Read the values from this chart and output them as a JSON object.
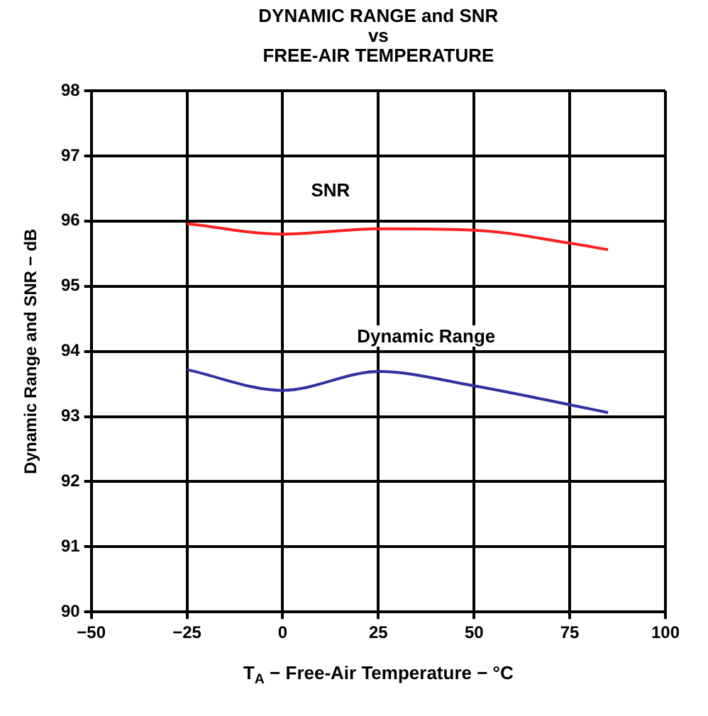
{
  "chart_data": {
    "type": "line",
    "title": "DYNAMIC RANGE and SNR\nvs\nFREE-AIR TEMPERATURE",
    "xlabel": "T$_{A}$ − Free-Air Temperature − °C",
    "ylabel": "Dynamic Range and SNR − dB",
    "x": [
      -25,
      0,
      25,
      50,
      75,
      85
    ],
    "series": [
      {
        "name": "SNR",
        "color": "#ff2020",
        "values": [
          95.96,
          95.8,
          95.88,
          95.86,
          95.66,
          95.56
        ]
      },
      {
        "name": "Dynamic Range",
        "color": "#3030a0",
        "values": [
          93.72,
          93.4,
          93.69,
          93.47,
          93.18,
          93.06
        ]
      }
    ],
    "xlim": [
      -50,
      100
    ],
    "xticks": [
      {
        "value": -50,
        "label": "−50"
      },
      {
        "value": -25,
        "label": "−25"
      },
      0,
      25,
      50,
      75,
      100
    ],
    "ylim": [
      90,
      98
    ],
    "yticks": [
      90,
      91,
      92,
      93,
      94,
      95,
      96,
      97,
      98
    ],
    "grid": true,
    "legend": false,
    "marker": "none",
    "line_style": "solid"
  }
}
